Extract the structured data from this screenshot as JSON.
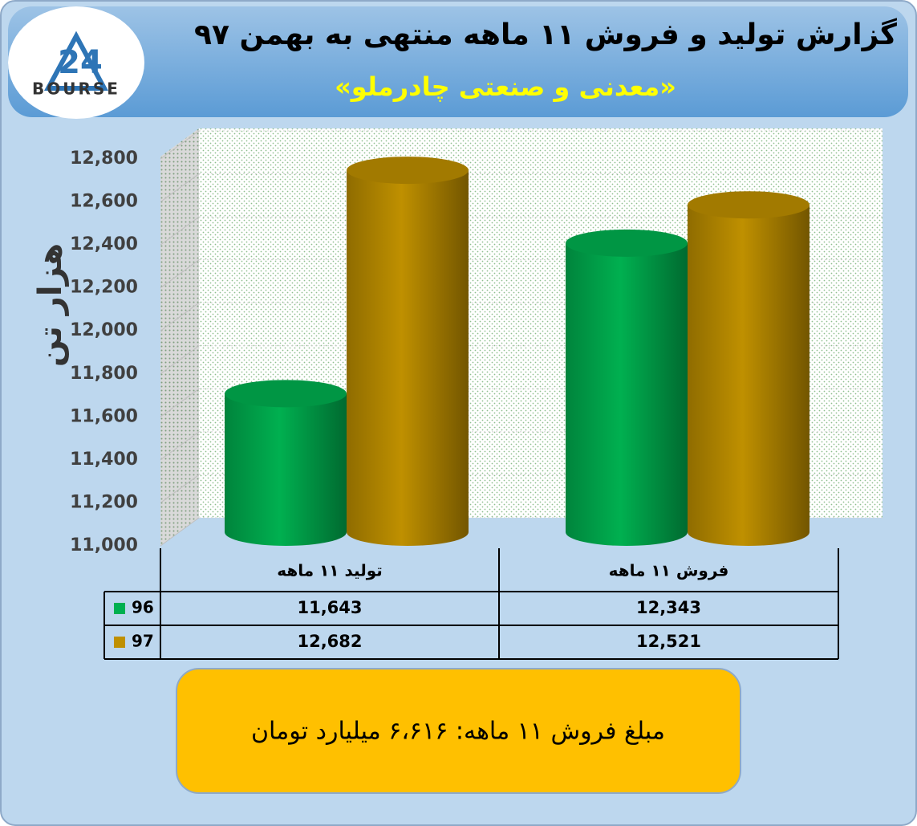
{
  "chart_data": {
    "type": "bar",
    "title": "گزارش تولید و فروش ۱۱ ماهه منتهی به بهمن ۹۷",
    "subtitle": "«معدنی و صنعتی چادرملو»",
    "logo": {
      "number": "24",
      "name": "BOURSE"
    },
    "y_label": "هزار تن",
    "categories": [
      "تولید ۱۱ ماهه",
      "فروش ۱۱ ماهه"
    ],
    "series": [
      {
        "name": "96",
        "color": "#00b050",
        "values": [
          11643,
          12343
        ],
        "value_labels": [
          "11,643",
          "12,343"
        ]
      },
      {
        "name": "97",
        "color": "#bf9000",
        "values": [
          12682,
          12521
        ],
        "value_labels": [
          "12,682",
          "12,521"
        ]
      }
    ],
    "ylim": [
      11000,
      12800
    ],
    "yticks": [
      {
        "value": 11000,
        "label": "11,000"
      },
      {
        "value": 11200,
        "label": "11,200"
      },
      {
        "value": 11400,
        "label": "11,400"
      },
      {
        "value": 11600,
        "label": "11,600"
      },
      {
        "value": 11800,
        "label": "11,800"
      },
      {
        "value": 12000,
        "label": "12,000"
      },
      {
        "value": 12200,
        "label": "12,200"
      },
      {
        "value": 12400,
        "label": "12,400"
      },
      {
        "value": 12600,
        "label": "12,600"
      },
      {
        "value": 12800,
        "label": "12,800"
      }
    ],
    "grid": true,
    "annotation": "مبلغ فروش ۱۱ ماهه: ۶،۶۱۶ میلیارد تومان"
  }
}
